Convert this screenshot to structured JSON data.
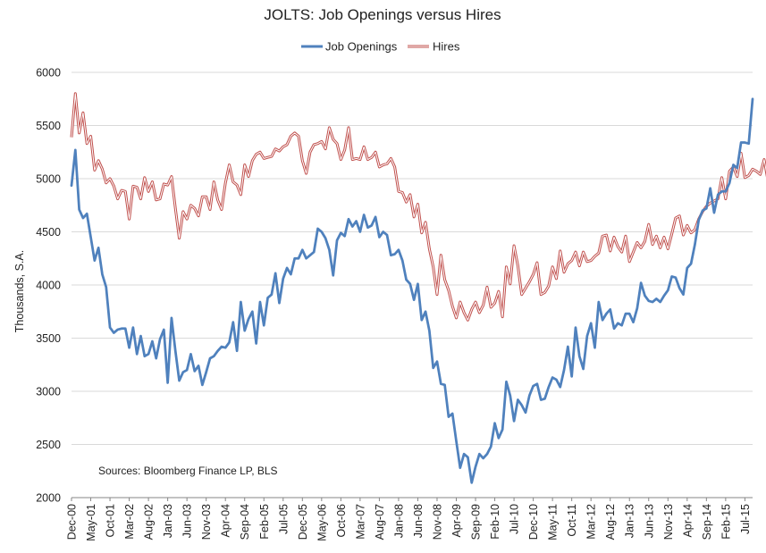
{
  "chart_data": {
    "type": "line",
    "title": "JOLTS:  Job Openings versus Hires",
    "ylabel": "Thousands, S.A.",
    "xlabel": "",
    "note": "Sources: Bloomberg Finance LP, BLS",
    "ylim": [
      2000,
      6000
    ],
    "yticks": [
      2000,
      2500,
      3000,
      3500,
      4000,
      4500,
      5000,
      5500,
      6000
    ],
    "xtick_labels": [
      "Dec-00",
      "May-01",
      "Oct-01",
      "Mar-02",
      "Aug-02",
      "Jan-03",
      "Jun-03",
      "Nov-03",
      "Apr-04",
      "Sep-04",
      "Feb-05",
      "Jul-05",
      "Dec-05",
      "May-06",
      "Oct-06",
      "Mar-07",
      "Aug-07",
      "Jan-08",
      "Jun-08",
      "Nov-08",
      "Apr-09",
      "Sep-09",
      "Feb-10",
      "Jul-10",
      "Dec-10",
      "May-11",
      "Oct-11",
      "Mar-12",
      "Aug-12",
      "Jan-13",
      "Jun-13",
      "Nov-13",
      "Apr-14",
      "Sep-14",
      "Feb-15",
      "Jul-15"
    ],
    "x_start": "Dec-00",
    "x_end": "Jul-15",
    "frequency": "monthly",
    "grid": "horizontal",
    "legend_position": "top",
    "series": [
      {
        "name": "Job Openings",
        "color": "#4F81BD",
        "style": "solid",
        "values": [
          4935,
          5270,
          4710,
          4630,
          4670,
          4450,
          4230,
          4350,
          4100,
          3980,
          3600,
          3550,
          3580,
          3590,
          3590,
          3410,
          3600,
          3350,
          3520,
          3330,
          3350,
          3470,
          3310,
          3490,
          3580,
          3080,
          3690,
          3380,
          3100,
          3180,
          3200,
          3350,
          3190,
          3240,
          3060,
          3180,
          3310,
          3330,
          3380,
          3420,
          3410,
          3460,
          3650,
          3380,
          3840,
          3570,
          3680,
          3750,
          3450,
          3840,
          3620,
          3880,
          3910,
          4110,
          3830,
          4060,
          4160,
          4100,
          4250,
          4250,
          4330,
          4250,
          4280,
          4310,
          4530,
          4500,
          4440,
          4330,
          4090,
          4420,
          4490,
          4460,
          4620,
          4550,
          4600,
          4500,
          4660,
          4540,
          4560,
          4640,
          4450,
          4500,
          4470,
          4280,
          4290,
          4330,
          4230,
          4050,
          4010,
          3860,
          4010,
          3670,
          3750,
          3570,
          3220,
          3280,
          3070,
          3060,
          2760,
          2790,
          2530,
          2280,
          2410,
          2380,
          2140,
          2290,
          2410,
          2370,
          2410,
          2480,
          2700,
          2560,
          2640,
          3090,
          2960,
          2720,
          2920,
          2870,
          2800,
          2960,
          3050,
          3070,
          2920,
          2930,
          3040,
          3130,
          3110,
          3040,
          3200,
          3420,
          3140,
          3600,
          3330,
          3210,
          3520,
          3640,
          3410,
          3840,
          3670,
          3730,
          3770,
          3590,
          3640,
          3620,
          3730,
          3730,
          3650,
          3780,
          4020,
          3900,
          3850,
          3840,
          3870,
          3840,
          3900,
          3950,
          4080,
          4070,
          3970,
          3910,
          4160,
          4200,
          4380,
          4610,
          4700,
          4720,
          4910,
          4680,
          4850,
          4880,
          4880,
          4960,
          5130,
          5100,
          5340,
          5340,
          5330,
          5750
        ]
      },
      {
        "name": "Hires",
        "color": "#C0504D",
        "style": "double-line",
        "values": [
          5390,
          5800,
          5430,
          5620,
          5330,
          5400,
          5080,
          5170,
          5090,
          4960,
          5000,
          4930,
          4810,
          4890,
          4880,
          4620,
          4930,
          4920,
          4810,
          5010,
          4880,
          4970,
          4800,
          4810,
          4950,
          4940,
          5020,
          4720,
          4440,
          4690,
          4620,
          4750,
          4720,
          4650,
          4830,
          4830,
          4710,
          4970,
          4800,
          4710,
          4960,
          5130,
          4970,
          4940,
          4850,
          5130,
          5020,
          5170,
          5230,
          5250,
          5190,
          5200,
          5210,
          5280,
          5260,
          5300,
          5320,
          5400,
          5430,
          5400,
          5170,
          5050,
          5250,
          5320,
          5330,
          5350,
          5280,
          5480,
          5370,
          5330,
          5180,
          5270,
          5480,
          5180,
          5190,
          5180,
          5300,
          5180,
          5200,
          5250,
          5110,
          5130,
          5140,
          5190,
          5110,
          4880,
          4870,
          4780,
          4850,
          4640,
          4760,
          4490,
          4590,
          4340,
          4170,
          3910,
          4280,
          4050,
          3950,
          3800,
          3690,
          3840,
          3740,
          3670,
          3770,
          3840,
          3740,
          3810,
          3980,
          3790,
          3830,
          3940,
          3700,
          4170,
          4010,
          4370,
          4180,
          3910,
          3970,
          4030,
          4100,
          4210,
          3910,
          3930,
          3990,
          4170,
          4060,
          4320,
          4120,
          4200,
          4230,
          4310,
          4180,
          4310,
          4220,
          4230,
          4270,
          4300,
          4460,
          4470,
          4320,
          4450,
          4360,
          4310,
          4460,
          4220,
          4310,
          4400,
          4350,
          4410,
          4570,
          4380,
          4460,
          4350,
          4450,
          4340,
          4480,
          4630,
          4650,
          4470,
          4560,
          4490,
          4520,
          4620,
          4690,
          4740,
          4770,
          4790,
          4810,
          5010,
          4810,
          5070,
          5110,
          5020,
          5240,
          5010,
          5030,
          5090,
          5070,
          5040,
          5180,
          4980
        ]
      }
    ]
  }
}
